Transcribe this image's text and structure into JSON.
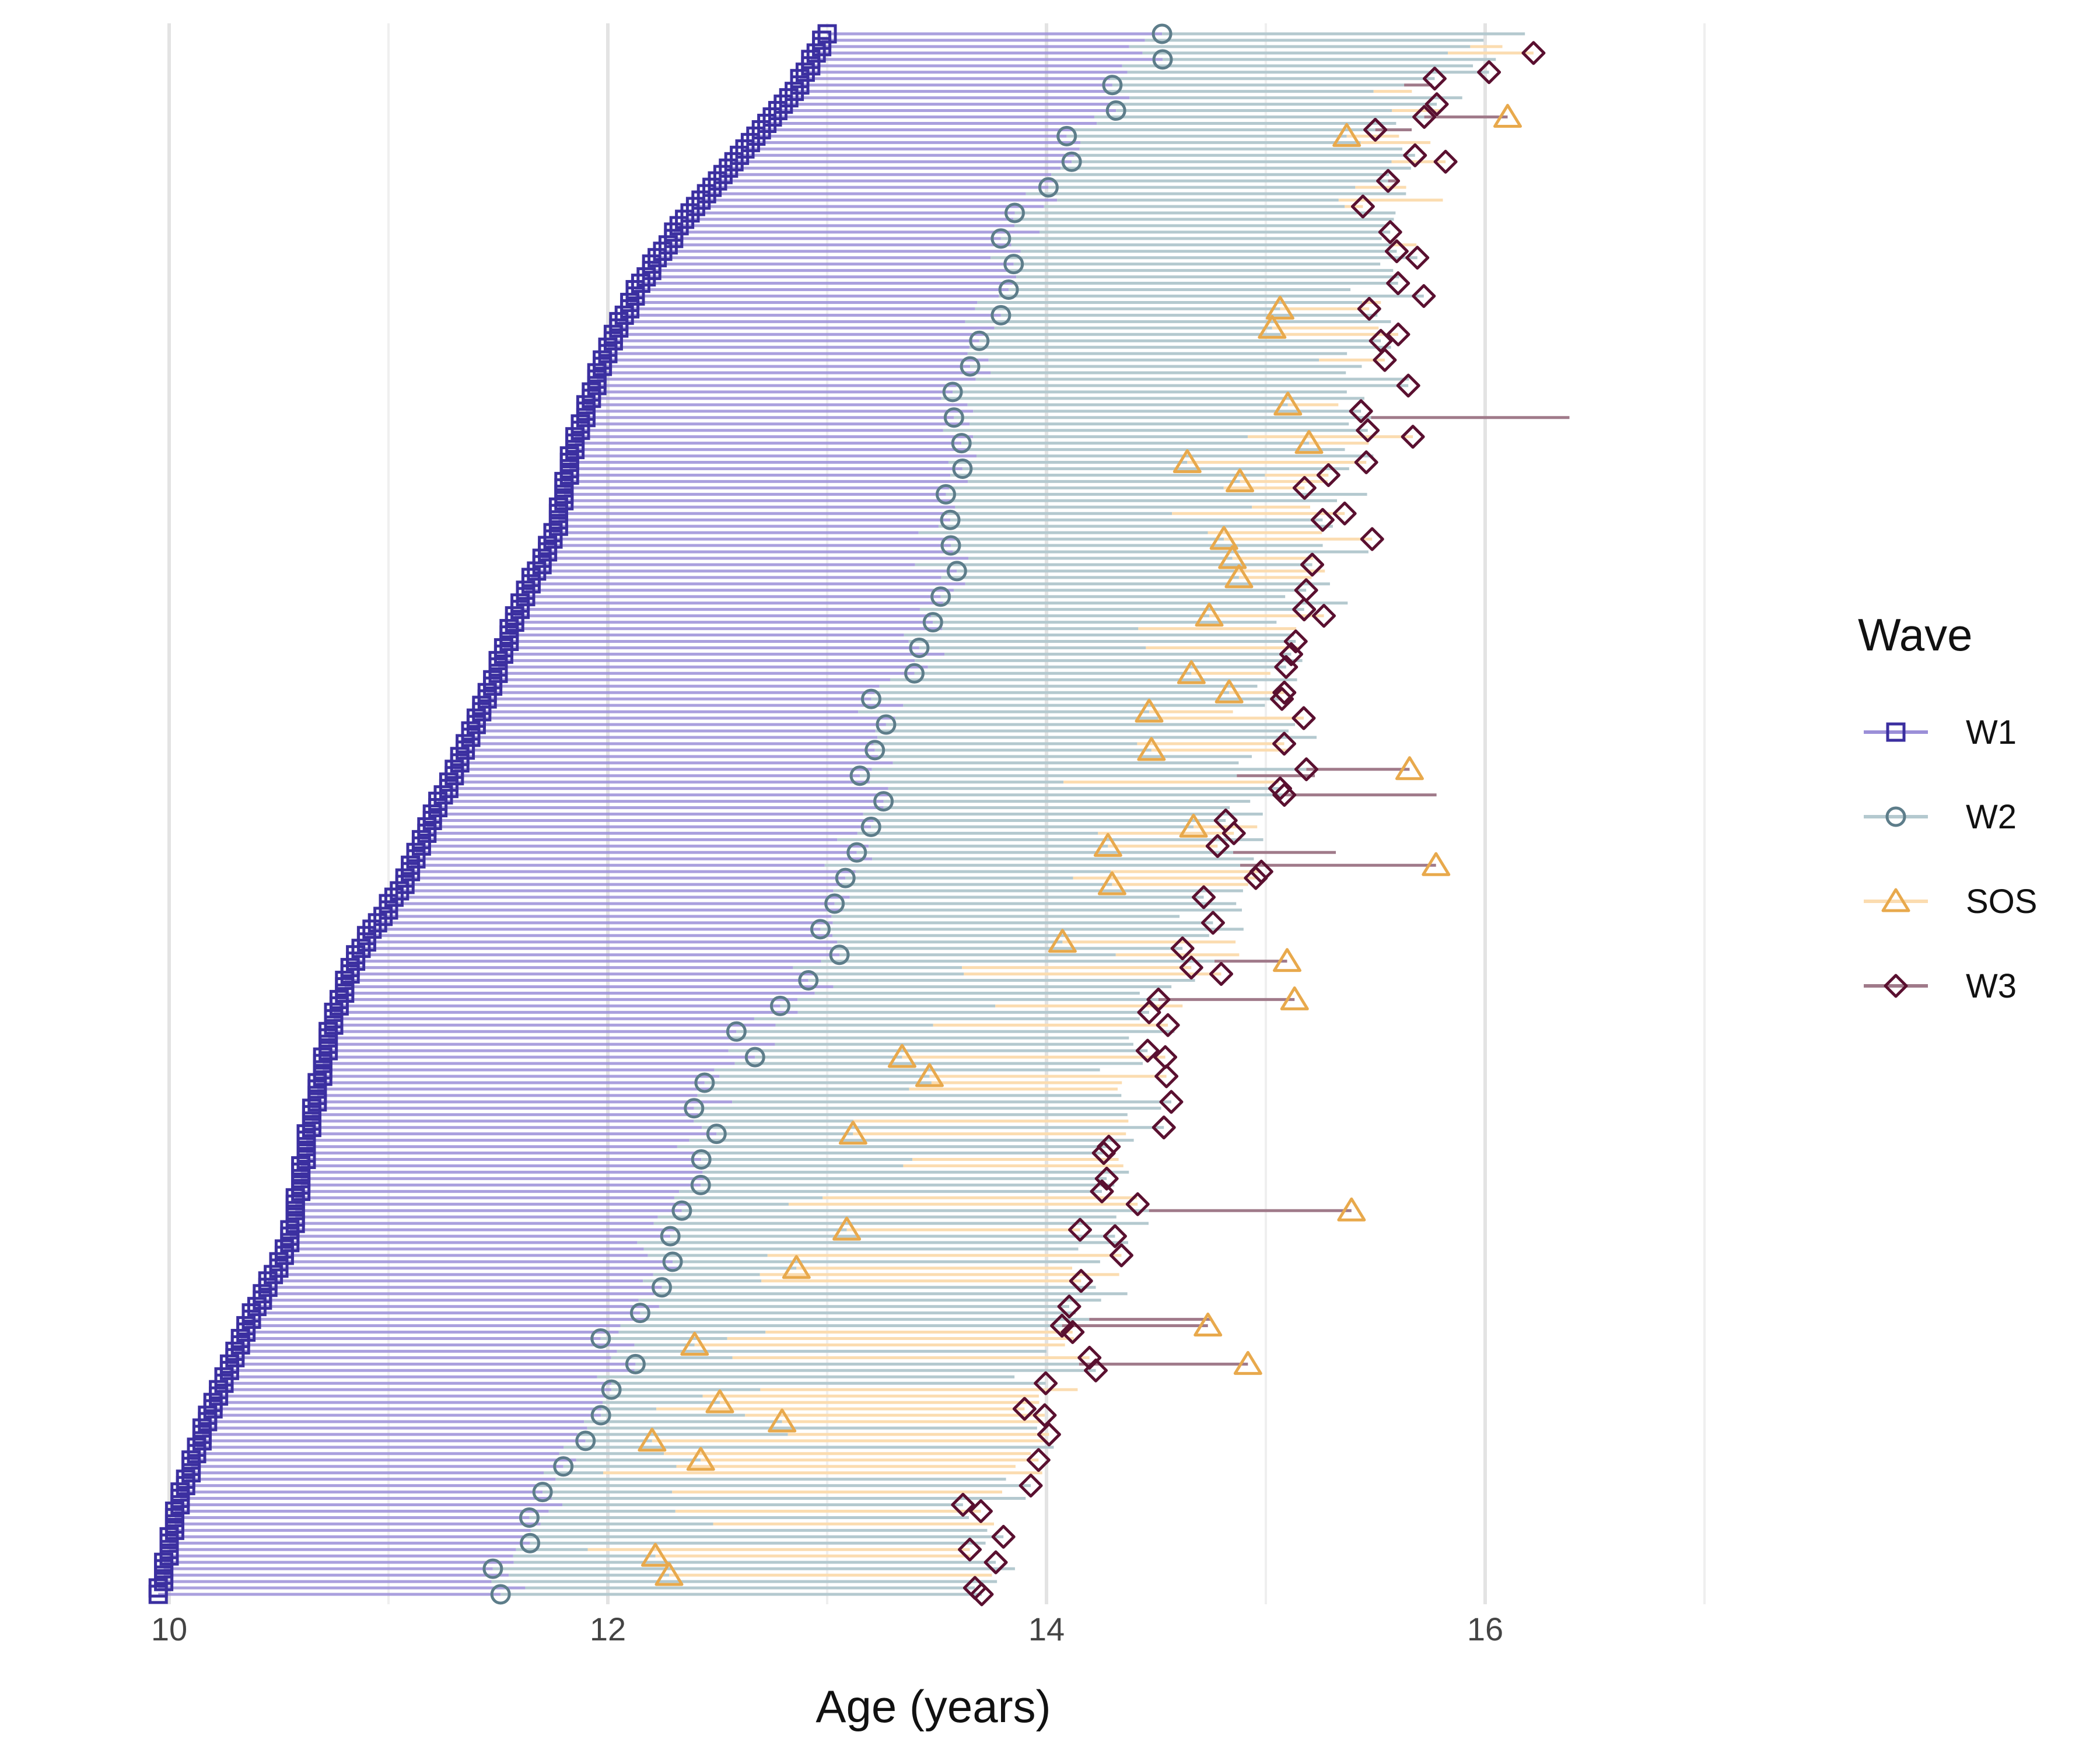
{
  "chart_data": {
    "type": "scatter",
    "subtype": "horizontal age-span plot (one row per participant)",
    "xlabel": "Age (years)",
    "ylabel": "",
    "title": "",
    "xlim": [
      10,
      17.8
    ],
    "x_ticks": [
      "10",
      "12",
      "14",
      "16"
    ],
    "x_tick_values": [
      10,
      12,
      14,
      16
    ],
    "grid": {
      "major_x": true,
      "minor_x": true,
      "y": false
    },
    "legend": {
      "title": "Wave",
      "placement": "right",
      "entries": [
        {
          "label": "W1",
          "shape": "square"
        },
        {
          "label": "W2",
          "shape": "circle"
        },
        {
          "label": "SOS",
          "shape": "triangle"
        },
        {
          "label": "W3",
          "shape": "diamond"
        }
      ]
    },
    "colors": {
      "W1": "#3b2fa0",
      "W1_line": "#9b8fd8",
      "W2": "#5d7d8a",
      "W2_line": "#b4c9cf",
      "SOS": "#e8a94c",
      "SOS_line": "#fbdcb0",
      "W3": "#5a1030",
      "W3_line": "#a07a8a"
    },
    "n_rows": 245,
    "series": [
      {
        "name": "W1",
        "description": "Age at wave 1, rows ordered bottom-to-top",
        "anchor_values": [
          [
            0,
            9.95
          ],
          [
            15,
            10.05
          ],
          [
            30,
            10.2
          ],
          [
            45,
            10.4
          ],
          [
            55,
            10.55
          ],
          [
            75,
            10.65
          ],
          [
            90,
            10.75
          ],
          [
            100,
            10.85
          ],
          [
            110,
            11.05
          ],
          [
            125,
            11.25
          ],
          [
            140,
            11.45
          ],
          [
            155,
            11.6
          ],
          [
            165,
            11.75
          ],
          [
            180,
            11.85
          ],
          [
            195,
            12.0
          ],
          [
            205,
            12.15
          ],
          [
            215,
            12.35
          ],
          [
            225,
            12.6
          ],
          [
            235,
            12.85
          ],
          [
            244,
            13.0
          ]
        ]
      },
      {
        "name": "W2",
        "description": "Age at wave 2",
        "anchor_values": [
          [
            0,
            11.5
          ],
          [
            15,
            11.7
          ],
          [
            30,
            11.95
          ],
          [
            45,
            12.15
          ],
          [
            55,
            12.25
          ],
          [
            75,
            12.4
          ],
          [
            90,
            12.8
          ],
          [
            100,
            13.0
          ],
          [
            110,
            13.05
          ],
          [
            125,
            13.2
          ],
          [
            140,
            13.3
          ],
          [
            155,
            13.5
          ],
          [
            165,
            13.55
          ],
          [
            180,
            13.6
          ],
          [
            195,
            13.7
          ],
          [
            205,
            13.8
          ],
          [
            215,
            13.9
          ],
          [
            225,
            14.1
          ],
          [
            235,
            14.3
          ],
          [
            244,
            14.5
          ]
        ],
        "spread": 0.18
      },
      {
        "name": "SOS",
        "description": "Age at SOS assessment",
        "anchor_values": [
          [
            0,
            12.0
          ],
          [
            15,
            12.3
          ],
          [
            30,
            12.5
          ],
          [
            45,
            12.7
          ],
          [
            55,
            13.0
          ],
          [
            75,
            13.3
          ],
          [
            90,
            13.6
          ],
          [
            100,
            13.9
          ],
          [
            110,
            14.1
          ],
          [
            125,
            14.3
          ],
          [
            140,
            14.5
          ],
          [
            155,
            14.6
          ],
          [
            165,
            14.8
          ],
          [
            180,
            15.0
          ],
          [
            195,
            15.2
          ],
          [
            205,
            15.3
          ],
          [
            215,
            15.4
          ],
          [
            225,
            15.5
          ],
          [
            235,
            15.6
          ],
          [
            244,
            15.8
          ]
        ],
        "spread": 0.5
      },
      {
        "name": "W3",
        "description": "Age at wave 3",
        "anchor_values": [
          [
            0,
            13.7
          ],
          [
            15,
            13.8
          ],
          [
            30,
            14.0
          ],
          [
            45,
            14.2
          ],
          [
            55,
            14.3
          ],
          [
            75,
            14.4
          ],
          [
            90,
            14.5
          ],
          [
            100,
            14.7
          ],
          [
            110,
            14.9
          ],
          [
            125,
            15.0
          ],
          [
            140,
            15.1
          ],
          [
            155,
            15.2
          ],
          [
            165,
            15.3
          ],
          [
            180,
            15.45
          ],
          [
            195,
            15.5
          ],
          [
            205,
            15.55
          ],
          [
            215,
            15.6
          ],
          [
            225,
            15.65
          ],
          [
            235,
            15.75
          ],
          [
            244,
            16.2
          ]
        ],
        "spread": 0.28
      }
    ]
  }
}
